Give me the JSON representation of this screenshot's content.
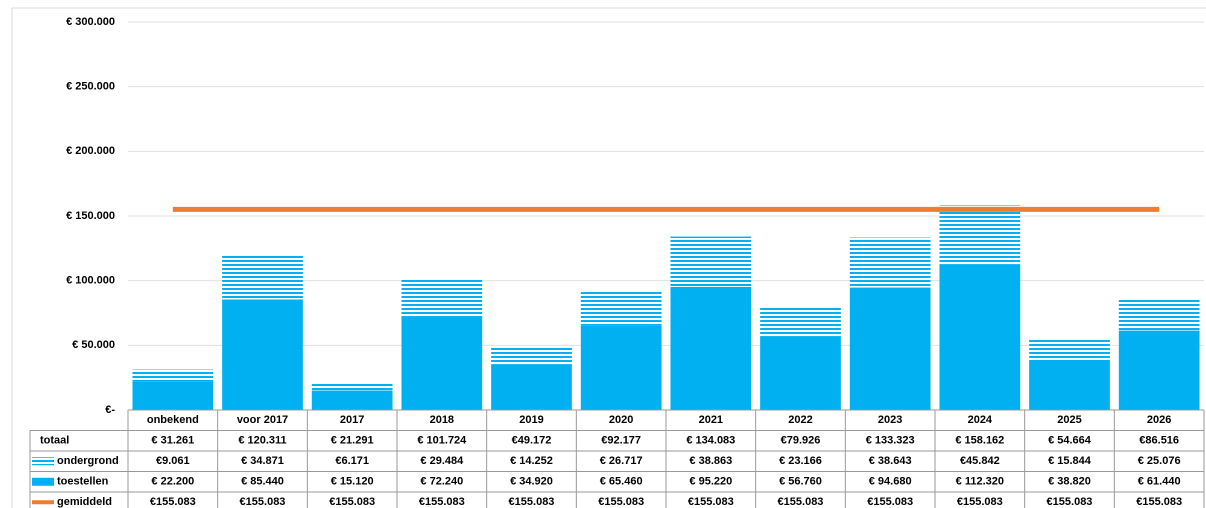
{
  "chart_data": {
    "type": "bar",
    "stacked": true,
    "grid": true,
    "categories": [
      "onbekend",
      "voor 2017",
      "2017",
      "2018",
      "2019",
      "2020",
      "2021",
      "2022",
      "2023",
      "2024",
      "2025",
      "2026"
    ],
    "ylim": [
      0,
      300000
    ],
    "yticks": [
      {
        "value": 0,
        "label": "€-"
      },
      {
        "value": 50000,
        "label": "€ 50.000"
      },
      {
        "value": 100000,
        "label": "€ 100.000"
      },
      {
        "value": 150000,
        "label": "€ 150.000"
      },
      {
        "value": 200000,
        "label": "€ 200.000"
      },
      {
        "value": 250000,
        "label": "€ 250.000"
      },
      {
        "value": 300000,
        "label": "€ 300.000"
      }
    ],
    "totals": {
      "name": "totaal",
      "values": [
        31261,
        120311,
        21291,
        101724,
        49172,
        92177,
        134083,
        79926,
        133323,
        158162,
        54664,
        86516
      ],
      "value_labels": [
        "€ 31.261",
        "€ 120.311",
        "€ 21.291",
        "€ 101.724",
        "€49.172",
        "€92.177",
        "€ 134.083",
        "€79.926",
        "€ 133.323",
        "€ 158.162",
        "€ 54.664",
        "€86.516"
      ]
    },
    "series": [
      {
        "name": "ondergrond",
        "type": "bar",
        "color": "#00b0f0",
        "pattern": "stripes",
        "values": [
          9061,
          34871,
          6171,
          29484,
          14252,
          26717,
          38863,
          23166,
          38643,
          45842,
          15844,
          25076
        ],
        "value_labels": [
          "€9.061",
          "€ 34.871",
          "€6.171",
          "€ 29.484",
          "€ 14.252",
          "€ 26.717",
          "€ 38.863",
          "€ 23.166",
          "€ 38.643",
          "€45.842",
          "€ 15.844",
          "€ 25.076"
        ]
      },
      {
        "name": "toestellen",
        "type": "bar",
        "color": "#00b0f0",
        "values": [
          22200,
          85440,
          15120,
          72240,
          34920,
          65460,
          95220,
          56760,
          94680,
          112320,
          38820,
          61440
        ],
        "value_labels": [
          "€ 22.200",
          "€ 85.440",
          "€ 15.120",
          "€ 72.240",
          "€ 34.920",
          "€ 65.460",
          "€ 95.220",
          "€ 56.760",
          "€ 94.680",
          "€ 112.320",
          "€ 38.820",
          "€ 61.440"
        ]
      },
      {
        "name": "gemiddeld",
        "type": "line",
        "color": "#ed7d31",
        "values": [
          155083,
          155083,
          155083,
          155083,
          155083,
          155083,
          155083,
          155083,
          155083,
          155083,
          155083,
          155083
        ],
        "value_labels": [
          "€155.083",
          "€155.083",
          "€155.083",
          "€155.083",
          "€155.083",
          "€155.083",
          "€155.083",
          "€155.083",
          "€155.083",
          "€155.083",
          "€155.083",
          "€155.083"
        ]
      }
    ]
  }
}
